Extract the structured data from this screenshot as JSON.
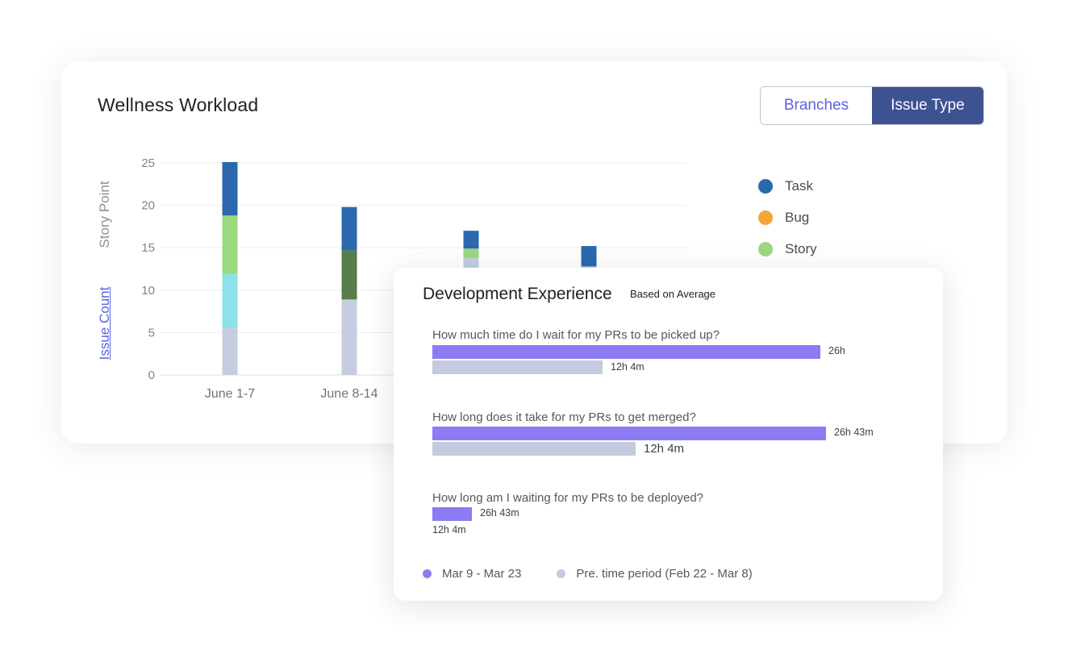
{
  "workload": {
    "title": "Wellness Workload",
    "toggle": {
      "branches_label": "Branches",
      "issue_type_label": "Issue Type",
      "active": "Issue Type"
    },
    "y_axis_label": "Story Point",
    "alt_axis_label": "Issue Count",
    "legend": [
      {
        "label": "Task",
        "color": "#2b68ae"
      },
      {
        "label": "Bug",
        "color": "#f4a63b"
      },
      {
        "label": "Story",
        "color": "#9bd880"
      }
    ]
  },
  "chart_data": {
    "type": "bar",
    "stacked": true,
    "ylabel": "Story Point",
    "ylim": [
      0,
      25
    ],
    "yticks": [
      0,
      5,
      10,
      15,
      20,
      25
    ],
    "grid": true,
    "categories": [
      "June 1-7",
      "June 8-14",
      "",
      ""
    ],
    "bars": [
      {
        "segments": [
          {
            "value": 5.5,
            "color": "#c5cddf"
          },
          {
            "value": 6.4,
            "color": "#8ee1e8"
          },
          {
            "value": 6.9,
            "color": "#9bd880"
          },
          {
            "value": 6.3,
            "color": "#2b68ae"
          }
        ]
      },
      {
        "segments": [
          {
            "value": 8.9,
            "color": "#c5cddf"
          },
          {
            "value": 5.8,
            "color": "#567d4a"
          },
          {
            "value": 5.1,
            "color": "#2b68ae"
          }
        ]
      },
      {
        "segments": [
          {
            "value": 13.8,
            "color": "#c5cddf"
          },
          {
            "value": 1.1,
            "color": "#9bd880"
          },
          {
            "value": 2.1,
            "color": "#2b68ae"
          }
        ]
      },
      {
        "segments": [
          {
            "value": 12.8,
            "color": "#c5cddf"
          },
          {
            "value": 2.4,
            "color": "#2b68ae"
          }
        ]
      }
    ]
  },
  "dev_experience": {
    "title": "Development Experience",
    "subtitle": "Based on Average",
    "questions": [
      {
        "text": "How much time do I wait for my PRs to be picked up?",
        "current": {
          "label": "26h",
          "fraction": 0.707
        },
        "previous": {
          "label": "12h 4m",
          "fraction": 0.31
        }
      },
      {
        "text": "How long does it take for my PRs to get merged?",
        "current": {
          "label": "26h 43m",
          "fraction": 0.717
        },
        "previous": {
          "label": "12h 4m",
          "fraction": 0.37
        }
      },
      {
        "text": "How long am I waiting for my PRs to be deployed?",
        "current": {
          "label": "26h 43m",
          "fraction": 0.072
        },
        "previous": {
          "label": "12h 4m",
          "fraction": 0.0
        }
      }
    ],
    "legend": [
      {
        "label": "Mar 9 - Mar 23",
        "color": "#8b7cf3"
      },
      {
        "label": "Pre. time period (Feb 22 - Mar 8)",
        "color": "#c4cbde"
      }
    ]
  }
}
